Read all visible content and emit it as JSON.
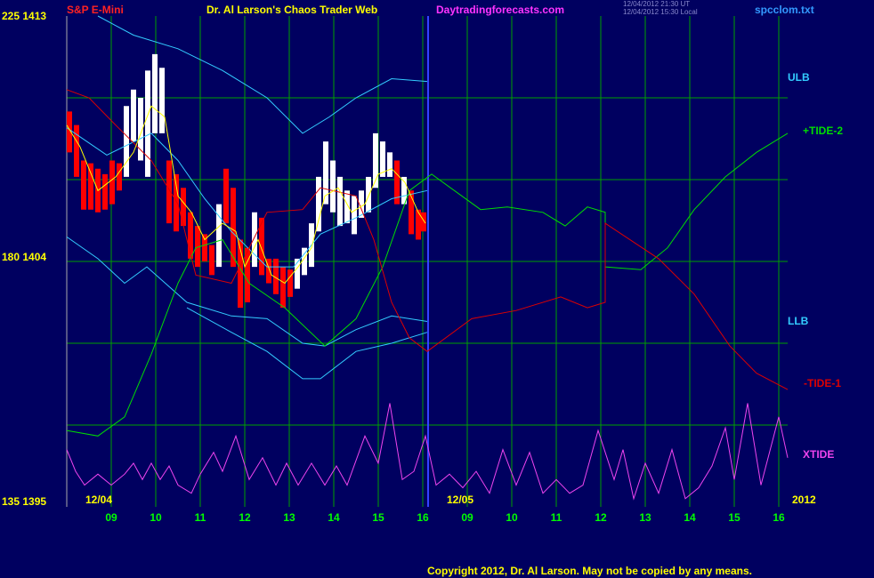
{
  "chart_data": {
    "type": "line",
    "instrument": "S&P E-Mini",
    "title": "Dr. Al Larson's Chaos Trader Web",
    "site": "Daytradingforecasts.com",
    "timestamps": [
      "12/04/2012 21:30 UT",
      "12/04/2012 15:30 Local"
    ],
    "source_file": "spcclom.txt",
    "copyright": "Copyright 2012, Dr. Al Larson. May not be copied by any means.",
    "annotations": [
      "12/04",
      "12/05",
      "2012"
    ],
    "ylim": [
      1395,
      1413
    ],
    "yticks": [
      {
        "value": 1413,
        "label": "225 1413"
      },
      {
        "value": 1404,
        "label": "180 1404"
      },
      {
        "value": 1395,
        "label": "135 1395"
      }
    ],
    "ygrid": [
      1398,
      1401,
      1404,
      1407,
      1410
    ],
    "xlim": [
      0,
      16.2
    ],
    "xticks": [
      {
        "value": 1,
        "label": "09"
      },
      {
        "value": 2,
        "label": "10"
      },
      {
        "value": 3,
        "label": "11"
      },
      {
        "value": 4,
        "label": "12"
      },
      {
        "value": 5,
        "label": "13"
      },
      {
        "value": 6,
        "label": "14"
      },
      {
        "value": 7,
        "label": "15"
      },
      {
        "value": 8,
        "label": "16"
      },
      {
        "value": 9,
        "label": "09"
      },
      {
        "value": 10,
        "label": "10"
      },
      {
        "value": 11,
        "label": "11"
      },
      {
        "value": 12,
        "label": "12"
      },
      {
        "value": 13,
        "label": "13"
      },
      {
        "value": 14,
        "label": "14"
      },
      {
        "value": 15,
        "label": "15"
      },
      {
        "value": 16,
        "label": "16"
      }
    ],
    "grid": true,
    "grid_color": "#00a000",
    "price_bars": {
      "x": [
        0.06,
        0.22,
        0.38,
        0.54,
        0.7,
        0.86,
        1.02,
        1.18,
        1.34,
        1.5,
        1.66,
        1.82,
        1.98,
        2.14,
        2.3,
        2.46,
        2.62,
        2.78,
        2.94,
        3.1,
        3.26,
        3.42,
        3.58,
        3.74,
        3.9,
        4.06,
        4.22,
        4.38,
        4.54,
        4.7,
        4.86,
        5.02,
        5.18,
        5.34,
        5.5,
        5.66,
        5.82,
        5.98,
        6.14,
        6.3,
        6.46,
        6.62,
        6.78,
        6.94,
        7.1,
        7.26,
        7.42,
        7.58,
        7.74,
        7.9,
        8.02
      ],
      "high": [
        1409.5,
        1409.0,
        1407.7,
        1407.6,
        1407.4,
        1407.2,
        1407.7,
        1407.6,
        1409.7,
        1410.3,
        1410.0,
        1411.0,
        1411.6,
        1411.1,
        1407.7,
        1407.2,
        1406.7,
        1405.8,
        1405.3,
        1405.0,
        1404.6,
        1406.1,
        1407.4,
        1406.7,
        1404.8,
        1404.5,
        1405.8,
        1405.6,
        1404.1,
        1404.1,
        1403.8,
        1403.7,
        1404.1,
        1404.5,
        1405.4,
        1407.1,
        1408.4,
        1407.7,
        1407.1,
        1406.6,
        1406.4,
        1406.6,
        1407.1,
        1408.7,
        1408.4,
        1408.0,
        1407.7,
        1407.1,
        1406.6,
        1405.9,
        1405.8
      ],
      "low": [
        1408.0,
        1407.1,
        1405.9,
        1405.9,
        1405.8,
        1405.9,
        1406.1,
        1406.6,
        1407.1,
        1408.4,
        1407.7,
        1407.1,
        1408.7,
        1408.7,
        1405.4,
        1405.1,
        1405.3,
        1404.1,
        1403.8,
        1404.0,
        1403.5,
        1403.8,
        1405.4,
        1403.8,
        1402.3,
        1402.5,
        1403.8,
        1403.5,
        1403.2,
        1402.8,
        1402.3,
        1402.7,
        1403.0,
        1403.5,
        1403.8,
        1405.1,
        1406.1,
        1405.8,
        1405.3,
        1405.4,
        1405.0,
        1405.6,
        1405.8,
        1406.7,
        1407.1,
        1407.1,
        1406.1,
        1406.1,
        1405.0,
        1404.8,
        1405.1
      ],
      "colors": [
        "#ff0000",
        "#ff0000",
        "#ff0000",
        "#ff0000",
        "#ff0000",
        "#ff0000",
        "#ff0000",
        "#ff0000",
        "#ffffff",
        "#ffffff",
        "#ffffff",
        "#ffffff",
        "#ffffff",
        "#ffffff",
        "#ff0000",
        "#ff0000",
        "#ff0000",
        "#ff0000",
        "#ff0000",
        "#ff0000",
        "#ff0000",
        "#ffffff",
        "#ff0000",
        "#ff0000",
        "#ff0000",
        "#ff0000",
        "#ffffff",
        "#ff0000",
        "#ff0000",
        "#ff0000",
        "#ff0000",
        "#ff0000",
        "#ffffff",
        "#ffffff",
        "#ffffff",
        "#ffffff",
        "#ffffff",
        "#ffffff",
        "#ffffff",
        "#ffffff",
        "#ffffff",
        "#ffffff",
        "#ffffff",
        "#ffffff",
        "#ffffff",
        "#ffffff",
        "#ff0000",
        "#ffffff",
        "#ff0000",
        "#ff0000",
        "#ff0000"
      ]
    },
    "series": [
      {
        "name": "ULB",
        "color": "#33ccff",
        "x": [
          0.7,
          1.5,
          2.5,
          3.5,
          4.5,
          5.3,
          5.9,
          6.5,
          7.3,
          8.1
        ],
        "values": [
          1413.0,
          1412.3,
          1411.8,
          1411.0,
          1410.0,
          1408.7,
          1409.3,
          1410.0,
          1410.7,
          1410.6
        ]
      },
      {
        "color": "#33ccff",
        "x": [
          0,
          0.9,
          1.9,
          2.5,
          3.1,
          3.7,
          4.5,
          5.1,
          5.7,
          6.5,
          7.3,
          8.1
        ],
        "values": [
          1408.9,
          1407.9,
          1408.7,
          1407.7,
          1406.3,
          1405.1,
          1403.8,
          1403.8,
          1405.0,
          1405.6,
          1406.3,
          1406.6
        ]
      },
      {
        "name": "LLB",
        "color": "#33ccff",
        "x": [
          0,
          0.7,
          1.3,
          1.8,
          2.7,
          3.7,
          4.5,
          5.3,
          5.8,
          6.5,
          7.3,
          8.1
        ],
        "values": [
          1404.9,
          1404.1,
          1403.2,
          1403.8,
          1402.5,
          1402.0,
          1401.9,
          1401.0,
          1400.9,
          1401.5,
          1402.0,
          1401.8
        ]
      },
      {
        "color": "#33ccff",
        "x": [
          2.7,
          3.7,
          4.5,
          5.3,
          5.7,
          6.5,
          7.3,
          8.1
        ],
        "values": [
          1402.3,
          1401.4,
          1400.7,
          1399.7,
          1399.7,
          1400.7,
          1401.0,
          1401.4
        ]
      },
      {
        "name": "+TIDE-2",
        "color": "#00dd00",
        "x": [
          0,
          0.7,
          1.3,
          1.9,
          2.5,
          2.9,
          3.5,
          4.1,
          4.9,
          5.8,
          6.5,
          7.1,
          7.7,
          8.2,
          9.3,
          9.9,
          10.7,
          11.2,
          11.7,
          12.1,
          12.1,
          12.9,
          13.5,
          14.1,
          14.8,
          15.5,
          16.2
        ],
        "values": [
          1397.8,
          1397.6,
          1398.3,
          1400.6,
          1403.2,
          1404.5,
          1404.8,
          1403.2,
          1402.3,
          1400.9,
          1401.9,
          1403.8,
          1406.6,
          1407.2,
          1405.9,
          1406.0,
          1405.8,
          1405.3,
          1406.0,
          1405.8,
          1403.8,
          1403.7,
          1404.5,
          1405.9,
          1407.1,
          1408.0,
          1408.7
        ]
      },
      {
        "name": "-TIDE-1",
        "color": "#dd0000",
        "x": [
          0,
          0.5,
          1.1,
          1.9,
          2.5,
          2.9,
          3.7,
          4.5,
          5.3,
          5.7,
          6.5,
          6.9,
          7.3,
          7.7,
          8.1,
          9.1,
          10.1,
          11.1,
          11.7,
          12.1,
          12.1,
          13.3,
          14.1,
          14.9,
          15.5,
          16.2
        ],
        "values": [
          1410.3,
          1410.0,
          1409.0,
          1407.7,
          1406.1,
          1403.5,
          1403.2,
          1405.8,
          1405.9,
          1406.7,
          1406.4,
          1404.8,
          1402.5,
          1401.2,
          1400.7,
          1401.9,
          1402.2,
          1402.7,
          1402.3,
          1402.5,
          1405.4,
          1404.1,
          1402.8,
          1400.9,
          1399.9,
          1399.3
        ]
      },
      {
        "color": "#ffff00",
        "x": [
          0,
          0.3,
          0.7,
          1.1,
          1.5,
          1.9,
          2.2,
          2.5,
          2.8,
          3.1,
          3.5,
          3.8,
          4.0,
          4.3,
          4.6,
          4.9,
          5.2,
          5.5,
          5.8,
          6.1,
          6.4,
          6.7,
          7.0,
          7.3,
          7.6,
          7.9,
          8.06
        ],
        "values": [
          1409.0,
          1408.2,
          1406.6,
          1407.1,
          1408.0,
          1409.7,
          1409.3,
          1406.4,
          1405.8,
          1404.8,
          1405.4,
          1405.1,
          1403.8,
          1404.8,
          1403.5,
          1403.2,
          1403.8,
          1404.5,
          1406.4,
          1406.7,
          1405.8,
          1406.1,
          1407.2,
          1407.4,
          1406.9,
          1405.8,
          1405.4
        ]
      },
      {
        "name": "XTIDE",
        "color": "#ee44ee",
        "x": [
          0,
          0.2,
          0.4,
          0.7,
          1.0,
          1.3,
          1.5,
          1.7,
          1.9,
          2.1,
          2.3,
          2.5,
          2.8,
          3.0,
          3.3,
          3.5,
          3.8,
          4.1,
          4.4,
          4.7,
          4.94,
          5.2,
          5.5,
          5.8,
          6.06,
          6.3,
          6.7,
          7.0,
          7.26,
          7.54,
          7.8,
          8.06,
          8.3,
          8.6,
          8.9,
          9.2,
          9.5,
          9.8,
          10.1,
          10.4,
          10.7,
          11.0,
          11.3,
          11.6,
          11.94,
          12.3,
          12.5,
          12.74,
          13.0,
          13.3,
          13.6,
          13.9,
          14.2,
          14.5,
          14.8,
          15.0,
          15.3,
          15.6,
          16.0,
          16.2
        ],
        "values": [
          1397.1,
          1396.3,
          1395.8,
          1396.2,
          1395.8,
          1396.2,
          1396.6,
          1396.0,
          1396.6,
          1396.0,
          1396.5,
          1395.8,
          1395.5,
          1396.2,
          1397.0,
          1396.3,
          1397.6,
          1396.0,
          1396.8,
          1395.8,
          1396.6,
          1395.8,
          1396.6,
          1395.8,
          1396.5,
          1395.8,
          1397.6,
          1396.6,
          1398.8,
          1396.0,
          1396.3,
          1397.6,
          1395.8,
          1396.2,
          1395.7,
          1396.3,
          1395.5,
          1397.1,
          1395.8,
          1397.0,
          1395.5,
          1396.0,
          1395.5,
          1395.8,
          1397.8,
          1396.0,
          1397.1,
          1395.3,
          1396.6,
          1395.5,
          1397.1,
          1395.3,
          1395.7,
          1396.5,
          1397.9,
          1396.0,
          1398.8,
          1395.8,
          1398.3,
          1396.8
        ]
      }
    ]
  }
}
